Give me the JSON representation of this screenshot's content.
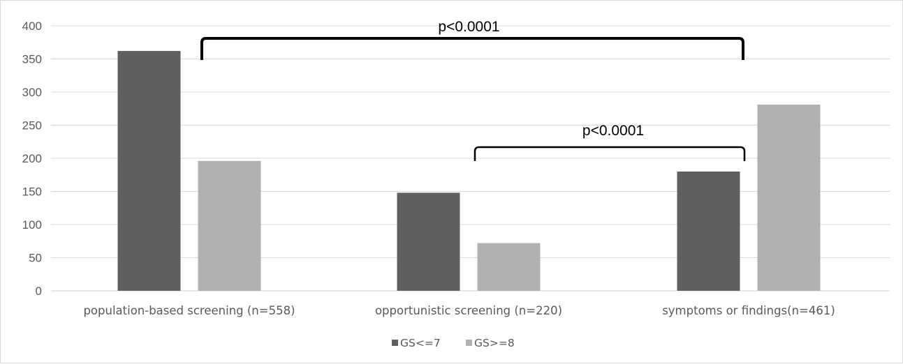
{
  "chart_data": {
    "type": "bar",
    "title": "",
    "xlabel": "",
    "ylabel": "",
    "categories": [
      "population-based screening (n=558)",
      "opportunistic screening (n=220)",
      "symptoms or findings(n=461)"
    ],
    "series": [
      {
        "name": "GS<=7",
        "values": [
          362,
          148,
          180
        ],
        "color": "#5f5f5f"
      },
      {
        "name": "GS>=8",
        "values": [
          196,
          72,
          281
        ],
        "color": "#b0b0b0"
      }
    ],
    "ylim": [
      0,
      400
    ],
    "yticks": [
      0,
      50,
      100,
      150,
      200,
      250,
      300,
      350,
      400
    ],
    "ytick_labels": [
      "0",
      "50",
      "100",
      "150",
      "200",
      "250",
      "300",
      "350",
      "400"
    ],
    "grid": true,
    "legend_position": "bottom",
    "annotations": [
      {
        "text": "p<0.0001",
        "from_category": 0,
        "to_category": 2,
        "bracket_level": 350
      },
      {
        "text": "p<0.0001",
        "from_category": 1,
        "to_category": 2,
        "bracket_level": 218
      }
    ]
  }
}
